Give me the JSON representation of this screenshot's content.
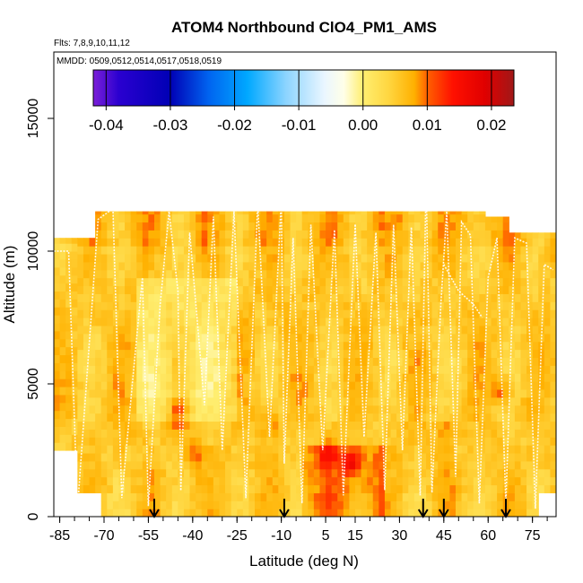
{
  "chart_data": {
    "type": "heatmap",
    "title": "ATOM4 Northbound ClO4_PM1_AMS",
    "flights_note": "Flts: 7,8,9,10,11,12",
    "dates_note": "MMDD: 0509,0512,0514,0517,0518,0519",
    "xlabel": "Latitude (deg N)",
    "ylabel": "Altitude (m)",
    "xlim": [
      -87,
      83
    ],
    "ylim": [
      0,
      17500
    ],
    "x_ticks": [
      "-85",
      "-70",
      "-55",
      "-40",
      "-25",
      "-10",
      "5",
      "15",
      "30",
      "45",
      "60",
      "75"
    ],
    "x_tick_values": [
      -85,
      -70,
      -55,
      -40,
      -25,
      -10,
      5,
      15,
      30,
      45,
      60,
      75
    ],
    "y_ticks": [
      "0",
      "5000",
      "10000",
      "15000"
    ],
    "y_tick_values": [
      0,
      5000,
      10000,
      15000
    ],
    "colorbar": {
      "range": [
        -0.042,
        0.0235
      ],
      "tick_labels": [
        "-0.04",
        "-0.03",
        "-0.02",
        "-0.01",
        "0.00",
        "0.01",
        "0.02"
      ],
      "tick_values": [
        -0.04,
        -0.03,
        -0.02,
        -0.01,
        0.0,
        0.01,
        0.02
      ],
      "stops": [
        {
          "v": -0.042,
          "c": "#7B1FD8"
        },
        {
          "v": -0.038,
          "c": "#2A00D0"
        },
        {
          "v": -0.03,
          "c": "#0000B5"
        },
        {
          "v": -0.024,
          "c": "#0064F0"
        },
        {
          "v": -0.018,
          "c": "#00A8FF"
        },
        {
          "v": -0.012,
          "c": "#8CD4FF"
        },
        {
          "v": -0.006,
          "c": "#EAF6FF"
        },
        {
          "v": -0.003,
          "c": "#FFFFE8"
        },
        {
          "v": 0.0,
          "c": "#FFEE70"
        },
        {
          "v": 0.004,
          "c": "#FFD640"
        },
        {
          "v": 0.008,
          "c": "#FFB000"
        },
        {
          "v": 0.01,
          "c": "#FF6000"
        },
        {
          "v": 0.014,
          "c": "#FF1000"
        },
        {
          "v": 0.019,
          "c": "#E00000"
        },
        {
          "v": 0.0235,
          "c": "#A01818"
        }
      ]
    },
    "field_extent": {
      "lat_min": -87,
      "lat_max": 82,
      "alt_min": 0,
      "alt_max": 12500
    },
    "grid_resolution": {
      "dlat": 2,
      "dalt": 300
    },
    "hotspots": [
      {
        "lat": 13,
        "alt": 1900,
        "value": 0.016
      },
      {
        "lat": 5,
        "alt": 2200,
        "value": 0.013
      },
      {
        "lat": -46,
        "alt": 3800,
        "value": 0.014
      },
      {
        "lat": -40,
        "alt": 2200,
        "value": 0.011
      },
      {
        "lat": 63,
        "alt": 4600,
        "value": 0.012
      },
      {
        "lat": -14,
        "alt": 3400,
        "value": 0.01
      },
      {
        "lat": 45,
        "alt": 3200,
        "value": 0.01
      },
      {
        "lat": 80,
        "alt": 9800,
        "value": 0.009
      }
    ],
    "flight_tracks": [
      [
        [
          -87,
          10000
        ],
        [
          -82,
          10000
        ],
        [
          -79,
          300
        ],
        [
          -72,
          11200
        ],
        [
          -67,
          11600
        ],
        [
          -64,
          700
        ],
        [
          -60,
          5500
        ],
        [
          -57,
          9000
        ],
        [
          -55,
          400
        ],
        [
          -51,
          8000
        ],
        [
          -48,
          11500
        ],
        [
          -45,
          8500
        ],
        [
          -44,
          1000
        ]
      ],
      [
        [
          -44,
          1000
        ],
        [
          -41,
          10700
        ],
        [
          -36,
          4200
        ],
        [
          -33,
          11300
        ],
        [
          -30,
          2500
        ],
        [
          -26,
          11500
        ],
        [
          -22,
          700
        ],
        [
          -18,
          11800
        ],
        [
          -14,
          3000
        ],
        [
          -10,
          11900
        ],
        [
          -9,
          2000
        ],
        [
          -6,
          10500
        ],
        [
          -3,
          500
        ],
        [
          0,
          11000
        ],
        [
          4,
          2500
        ],
        [
          8,
          10800
        ],
        [
          11,
          800
        ],
        [
          15,
          11000
        ]
      ],
      [
        [
          15,
          11000
        ],
        [
          18,
          3000
        ],
        [
          22,
          10700
        ],
        [
          25,
          1000
        ],
        [
          28,
          11000
        ],
        [
          31,
          2500
        ],
        [
          34,
          10900
        ],
        [
          37,
          800
        ],
        [
          39,
          12600
        ],
        [
          41,
          900
        ],
        [
          44,
          8000
        ],
        [
          46,
          11500
        ],
        [
          49,
          1500
        ],
        [
          51,
          11100
        ],
        [
          54,
          10600
        ],
        [
          57,
          500
        ],
        [
          60,
          9000
        ],
        [
          63,
          10500
        ],
        [
          66,
          500
        ],
        [
          69,
          10500
        ],
        [
          73,
          10300
        ],
        [
          76,
          300
        ],
        [
          79,
          9500
        ],
        [
          82,
          9300
        ]
      ],
      [
        [
          45,
          9500
        ],
        [
          50,
          8500
        ],
        [
          55,
          8000
        ],
        [
          58,
          7500
        ]
      ]
    ],
    "arrows_lat": [
      -53,
      -9,
      38,
      45,
      66
    ]
  }
}
